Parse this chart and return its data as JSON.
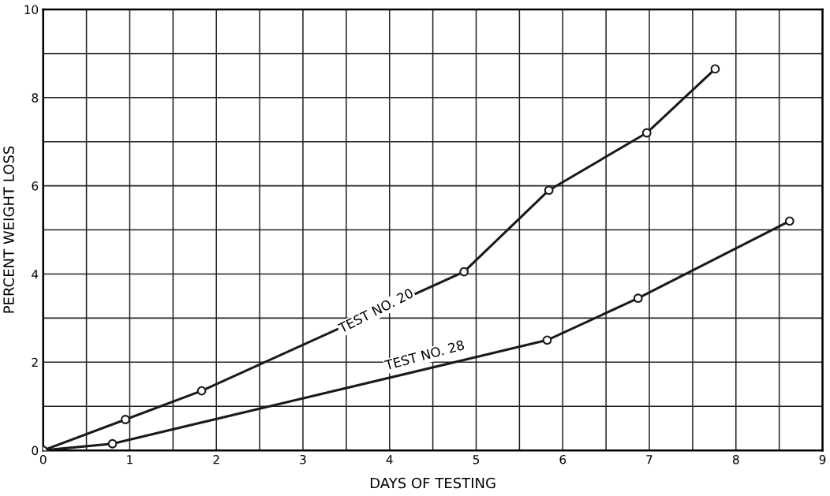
{
  "chart_data": {
    "type": "line",
    "xlabel": "DAYS OF TESTING",
    "ylabel": "PERCENT WEIGHT LOSS",
    "xlim": [
      0,
      9
    ],
    "ylim": [
      0,
      10
    ],
    "xticks": [
      0,
      {
        "value": 0.5,
        "label": null
      },
      1,
      {
        "value": 1.5,
        "label": null
      },
      2,
      {
        "value": 2.5,
        "label": null
      },
      3,
      {
        "value": 3.5,
        "label": null
      },
      4,
      {
        "value": 4.5,
        "label": null
      },
      5,
      {
        "value": 5.5,
        "label": null
      },
      6,
      {
        "value": 6.5,
        "label": null
      },
      7,
      {
        "value": 7.5,
        "label": null
      },
      8,
      {
        "value": 8.5,
        "label": null
      },
      9
    ],
    "yticks": [
      0,
      {
        "value": 1,
        "label": null
      },
      2,
      {
        "value": 3,
        "label": null
      },
      4,
      {
        "value": 5,
        "label": null
      },
      6,
      {
        "value": 7,
        "label": null
      },
      8,
      {
        "value": 9,
        "label": null
      },
      10
    ],
    "grid": true,
    "marker": "circle",
    "line_style": "solid",
    "series": [
      {
        "color": "#1a1a1a",
        "x": [
          0,
          0.95,
          1.83,
          4.86,
          5.84,
          6.97,
          7.76
        ],
        "values": [
          0,
          0.7,
          1.35,
          4.05,
          5.9,
          7.2,
          8.65
        ]
      },
      {
        "color": "#1a1a1a",
        "x": [
          0,
          0.8,
          5.82,
          6.87,
          8.62
        ],
        "values": [
          0,
          0.15,
          2.5,
          3.45,
          5.2
        ]
      }
    ],
    "annotations": [
      {
        "text": "TEST NO. 20",
        "x": 3.85,
        "y": 3.15
      },
      {
        "text": "TEST NO. 28",
        "x": 4.41,
        "y": 1.84
      }
    ]
  }
}
